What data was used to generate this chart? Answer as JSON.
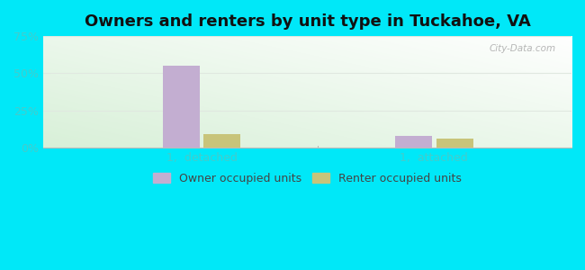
{
  "title": "Owners and renters by unit type in Tuckahoe, VA",
  "categories": [
    "1,  detached",
    "1,  attached"
  ],
  "owner_values": [
    55,
    8
  ],
  "renter_values": [
    9,
    6
  ],
  "owner_color": "#c3aed1",
  "renter_color": "#c8c47a",
  "ylim": [
    0,
    75
  ],
  "yticks": [
    0,
    25,
    50,
    75
  ],
  "yticklabels": [
    "0%",
    "25%",
    "50%",
    "75%"
  ],
  "background_outer": "#00e8f8",
  "background_inner_topleft": "#e8f8e8",
  "background_inner_topright": "#f8ffff",
  "background_inner_bottomleft": "#d8f0d8",
  "background_inner_bottomright": "#ffffff",
  "legend_owner": "Owner occupied units",
  "legend_renter": "Renter occupied units",
  "bar_width": 0.35,
  "watermark": "City-Data.com",
  "title_fontsize": 13,
  "tick_fontsize": 9,
  "legend_fontsize": 9,
  "tick_color": "#44cccc",
  "grid_color": "#e0e8e0"
}
